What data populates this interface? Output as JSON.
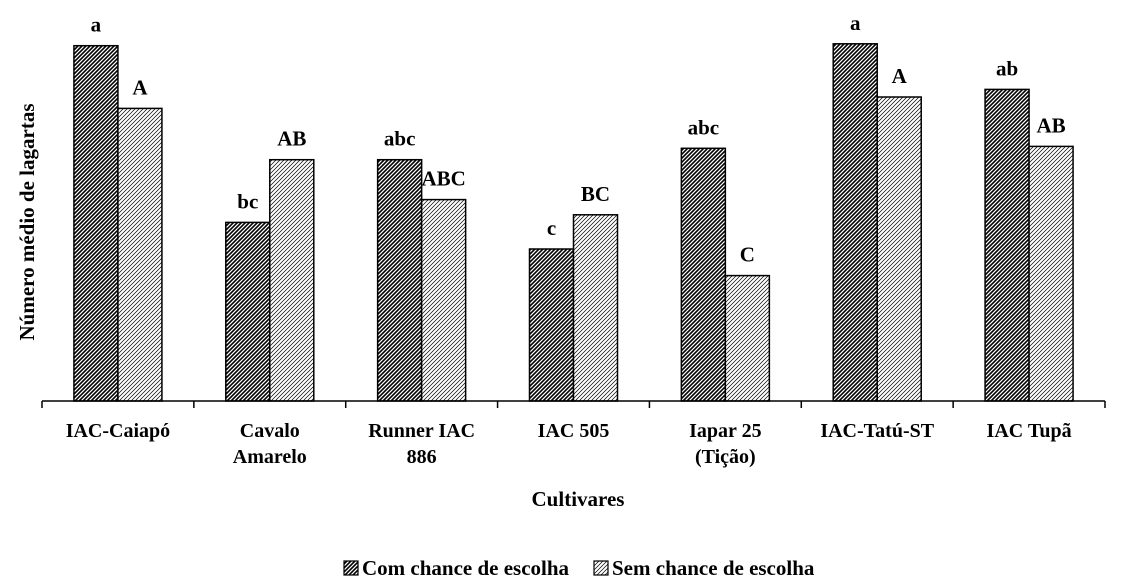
{
  "chart_data": {
    "type": "bar",
    "title": "",
    "xlabel": "Cultivares",
    "ylabel": "Número médio de lagartas",
    "ylim": [
      0,
      100
    ],
    "grid": false,
    "legend_position": "bottom",
    "categories": [
      [
        "IAC-Caiapó"
      ],
      [
        "Cavalo",
        "Amarelo"
      ],
      [
        "Runner IAC",
        "886"
      ],
      [
        "IAC 505"
      ],
      [
        "Iapar 25",
        "(Tição)"
      ],
      [
        "IAC-Tatú-ST"
      ],
      [
        "IAC Tupã"
      ]
    ],
    "series": [
      {
        "name": "Com chance de escolha",
        "pattern": "dense-hatch",
        "values": [
          93.5,
          47.0,
          63.5,
          40.0,
          66.5,
          94.0,
          82.0
        ],
        "labels": [
          "a",
          "bc",
          "abc",
          "c",
          "abc",
          "a",
          "ab"
        ]
      },
      {
        "name": "Sem chance de escolha",
        "pattern": "light-hatch",
        "values": [
          77.0,
          63.5,
          53.0,
          49.0,
          33.0,
          80.0,
          67.0
        ],
        "labels": [
          "A",
          "AB",
          "ABC",
          "BC",
          "C",
          "A",
          "AB"
        ]
      }
    ]
  }
}
